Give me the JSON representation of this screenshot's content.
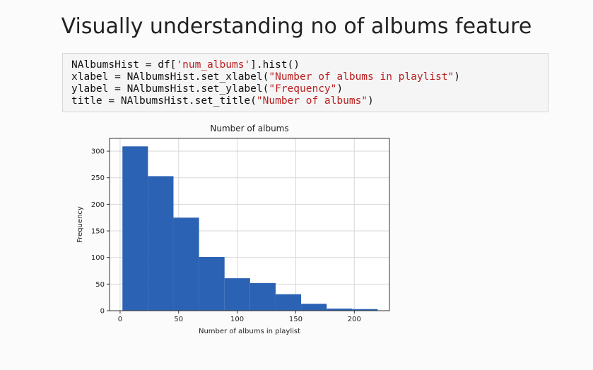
{
  "title": "Visually understanding no of albums feature",
  "code": [
    [
      "NAlbumsHist = df[",
      "'num_albums'",
      "].hist()"
    ],
    [
      "xlabel = NAlbumsHist.set_xlabel(",
      "\"Number of albums in playlist\"",
      ")"
    ],
    [
      "ylabel = NAlbumsHist.set_ylabel(",
      "\"Frequency\"",
      ")"
    ],
    [
      "title = NAlbumsHist.set_title(",
      "\"Number of albums\"",
      ")"
    ]
  ],
  "chart_data": {
    "type": "histogram",
    "title": "Number of albums",
    "xlabel": "Number of albums in playlist",
    "ylabel": "Frequency",
    "bins": [
      2,
      23.8,
      45.6,
      67.4,
      89.2,
      111,
      132.8,
      154.6,
      176.4,
      198.2,
      220
    ],
    "values": [
      309,
      253,
      175,
      101,
      61,
      52,
      31,
      13,
      4,
      3
    ],
    "color": "#2c62b4",
    "xlim": [
      -9,
      230
    ],
    "xticks": [
      0,
      50,
      100,
      150,
      200
    ],
    "ylim": [
      0,
      324
    ],
    "yticks": [
      0,
      50,
      100,
      150,
      200,
      250,
      300
    ],
    "grid": true
  }
}
